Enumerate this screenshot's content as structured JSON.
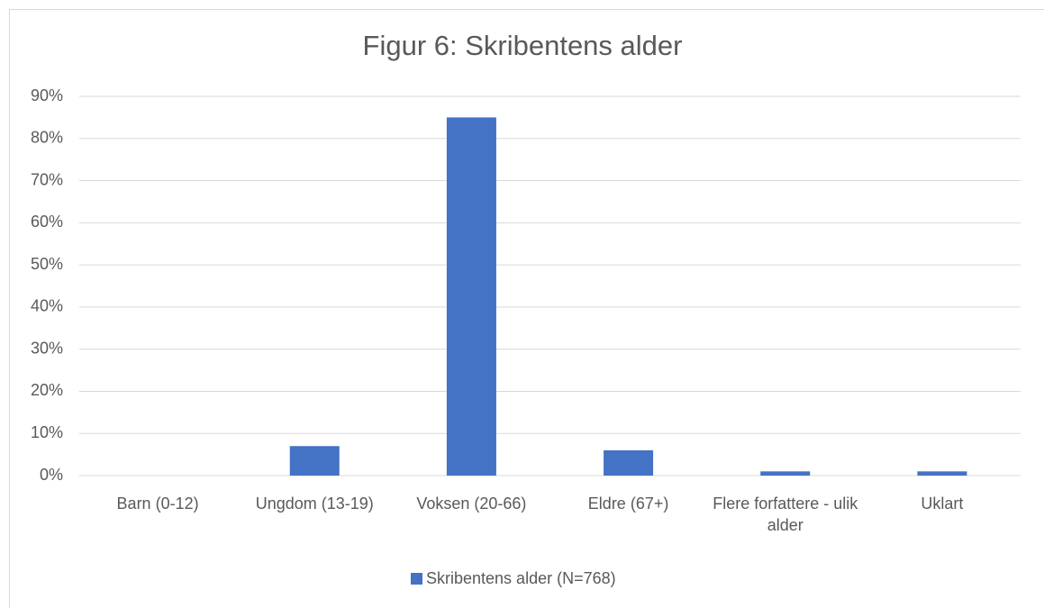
{
  "chart_data": {
    "type": "bar",
    "title": "Figur 6: Skribentens alder",
    "categories": [
      "Barn (0-12)",
      "Ungdom (13-19)",
      "Voksen (20-66)",
      "Eldre (67+)",
      "Flere forfattere - ulik alder",
      "Uklart"
    ],
    "series": [
      {
        "name": "Skribentens alder (N=768)",
        "color": "#4472c4",
        "values": [
          0,
          7,
          85,
          6,
          1,
          1
        ]
      }
    ],
    "ylim": [
      0,
      90
    ],
    "yticks": [
      {
        "value": 0,
        "label": "0%"
      },
      {
        "value": 10,
        "label": "10%"
      },
      {
        "value": 20,
        "label": "20%"
      },
      {
        "value": 30,
        "label": "30%"
      },
      {
        "value": 40,
        "label": "40%"
      },
      {
        "value": 50,
        "label": "50%"
      },
      {
        "value": 60,
        "label": "60%"
      },
      {
        "value": 70,
        "label": "70%"
      },
      {
        "value": 80,
        "label": "80%"
      },
      {
        "value": 90,
        "label": "90%"
      }
    ],
    "grid": true,
    "legend": "bottom"
  }
}
